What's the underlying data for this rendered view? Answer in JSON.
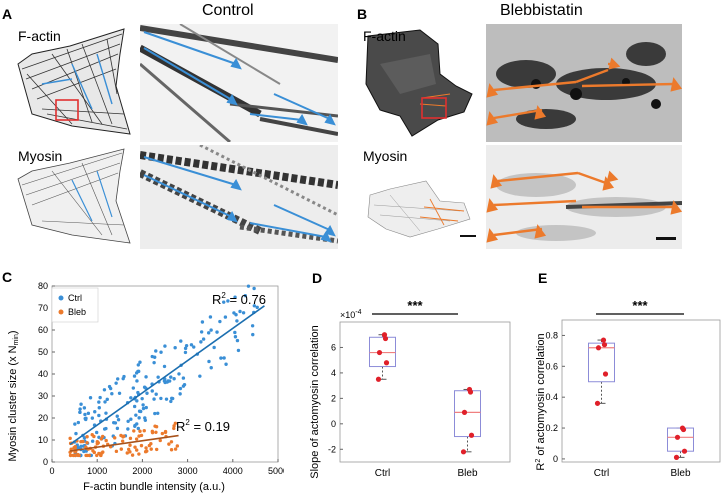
{
  "panels": {
    "A": {
      "label": "A",
      "title": "Control",
      "ch1": "F-actin",
      "ch2": "Myosin"
    },
    "B": {
      "label": "B",
      "title": "Blebbistatin",
      "ch1": "F-actin",
      "ch2": "Myosin"
    },
    "C": {
      "label": "C"
    },
    "D": {
      "label": "D"
    },
    "E": {
      "label": "E"
    }
  },
  "colors": {
    "ctrl": "#3a8fd6",
    "bleb": "#ec7a2c",
    "roi": "#e03030",
    "box": "#8c8cd8",
    "median": "#f08080",
    "dot": "#e0202a"
  },
  "chart_data": [
    {
      "id": "C",
      "type": "scatter",
      "xlabel": "F-actin bundle intensity (a.u.)",
      "ylabel_main": "Myosin cluster size (x N",
      "ylabel_sub": "min",
      "ylabel_end": ")",
      "xlim": [
        0,
        5000
      ],
      "ylim": [
        0,
        80
      ],
      "xticks": [
        0,
        1000,
        2000,
        3000,
        4000,
        5000
      ],
      "yticks": [
        0,
        10,
        20,
        30,
        40,
        50,
        60,
        70,
        80
      ],
      "legend": [
        "Ctrl",
        "Bleb"
      ],
      "annotations": [
        {
          "base": "R",
          "sup": "2",
          "rest": " = 0.76",
          "series": "ctrl"
        },
        {
          "base": "R",
          "sup": "2",
          "rest": " = 0.19",
          "series": "bleb"
        }
      ],
      "fits": {
        "ctrl": {
          "x": [
            400,
            4700
          ],
          "y": [
            8,
            71
          ]
        },
        "bleb": {
          "x": [
            400,
            2800
          ],
          "y": [
            5,
            12
          ]
        }
      }
    },
    {
      "id": "D",
      "type": "box",
      "ylabel": "Slope of actomyosin correlation",
      "exponent_base": "×10",
      "exponent_sup": "-4",
      "ylim": [
        -3,
        8
      ],
      "yticks": [
        -2,
        0,
        2,
        4,
        6
      ],
      "categories": [
        "Ctrl",
        "Bleb"
      ],
      "boxes": [
        {
          "q1": 4.5,
          "median": 5.6,
          "q3": 6.8,
          "min": 3.5,
          "max": 7.0,
          "points": [
            7.0,
            6.7,
            5.6,
            4.8,
            3.5
          ]
        },
        {
          "q1": -1.0,
          "median": 0.9,
          "q3": 2.6,
          "min": -2.2,
          "max": 2.7,
          "points": [
            2.7,
            2.5,
            0.9,
            -0.9,
            -2.2
          ]
        }
      ],
      "significance": "***"
    },
    {
      "id": "E",
      "type": "box",
      "ylabel_base": "R",
      "ylabel_sup": "2",
      "ylabel_rest": " of actomyosin correlation",
      "ylim": [
        -0.02,
        0.9
      ],
      "yticks": [
        0,
        0.2,
        0.4,
        0.6,
        0.8
      ],
      "ytick_labels": [
        "0",
        "0.2",
        "0.4",
        "0.6",
        "0.8"
      ],
      "categories": [
        "Ctrl",
        "Bleb"
      ],
      "boxes": [
        {
          "q1": 0.5,
          "median": 0.72,
          "q3": 0.75,
          "min": 0.36,
          "max": 0.77,
          "points": [
            0.77,
            0.74,
            0.72,
            0.55,
            0.36
          ]
        },
        {
          "q1": 0.05,
          "median": 0.14,
          "q3": 0.2,
          "min": 0.01,
          "max": 0.2,
          "points": [
            0.2,
            0.19,
            0.14,
            0.05,
            0.01
          ]
        }
      ],
      "significance": "***"
    }
  ]
}
